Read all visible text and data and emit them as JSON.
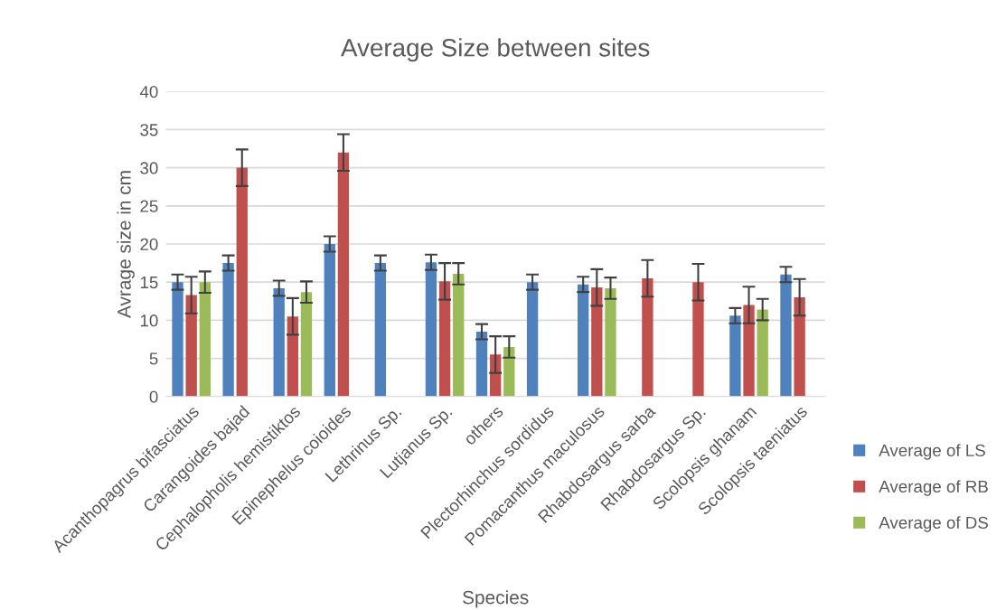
{
  "chart_data": {
    "type": "bar",
    "title": "Average Size between sites",
    "xlabel": "Species",
    "ylabel": "Avrage size in cm",
    "categories": [
      "Acanthopagrus bifasciatus",
      "Carangoides bajad",
      "Cephalopholis hemistiktos",
      "Epinephelus coioides",
      "Lethrinus Sp.",
      "Lutjanus Sp.",
      "others",
      "Plectorhinchus sordidus",
      "Pomacanthus maculosus",
      "Rhabdosargus sarba",
      "Rhabdosargus Sp.",
      "Scolopsis ghanam",
      "Scolopsis taeniatus"
    ],
    "series": [
      {
        "name": "Average of LS",
        "color": "#4f81bd",
        "values": [
          15,
          17.5,
          14.2,
          20,
          17.5,
          17.6,
          8.5,
          15,
          14.7,
          null,
          null,
          10.6,
          16
        ],
        "errors": [
          1,
          1,
          1,
          1,
          1,
          1,
          1,
          1,
          1,
          null,
          null,
          1,
          1
        ]
      },
      {
        "name": "Average of RB",
        "color": "#c0504d",
        "values": [
          13.3,
          30,
          10.5,
          32,
          null,
          15.1,
          5.5,
          null,
          14.3,
          15.5,
          15,
          12,
          13
        ],
        "errors": [
          2.4,
          2.4,
          2.4,
          2.4,
          null,
          2.4,
          2.4,
          null,
          2.4,
          2.4,
          2.4,
          2.4,
          2.4
        ]
      },
      {
        "name": "Average of DS",
        "color": "#9bbb59",
        "values": [
          15,
          null,
          13.7,
          null,
          null,
          16.1,
          6.5,
          null,
          14.2,
          null,
          null,
          11.4,
          null
        ],
        "errors": [
          1.4,
          null,
          1.4,
          null,
          null,
          1.4,
          1.4,
          null,
          1.4,
          null,
          null,
          1.4,
          null
        ]
      }
    ],
    "ylim": [
      0,
      40
    ],
    "yticks": [
      0,
      5,
      10,
      15,
      20,
      25,
      30,
      35,
      40
    ],
    "grid": "y",
    "legend": "right"
  }
}
